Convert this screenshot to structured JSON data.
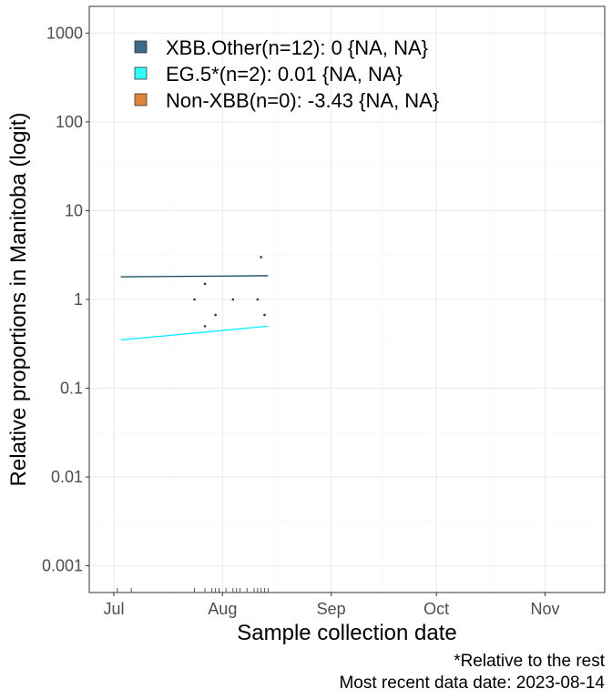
{
  "chart_data": {
    "type": "line",
    "title": "",
    "xlabel": "Sample collection date",
    "ylabel": "Relative proportions in Manitoba (logit)",
    "x_axis": {
      "type": "date",
      "range": [
        "2023-06-24",
        "2023-11-18"
      ],
      "ticks": [
        {
          "date": "2023-07-01",
          "label": "Jul"
        },
        {
          "date": "2023-08-01",
          "label": "Aug"
        },
        {
          "date": "2023-09-01",
          "label": "Sep"
        },
        {
          "date": "2023-10-01",
          "label": "Oct"
        },
        {
          "date": "2023-11-01",
          "label": "Nov"
        }
      ]
    },
    "y_axis": {
      "scale": "log10",
      "range": [
        0.0005,
        2000
      ],
      "ticks": [
        {
          "value": 0.001,
          "label": "0.001"
        },
        {
          "value": 0.01,
          "label": "0.01"
        },
        {
          "value": 0.1,
          "label": "0.1"
        },
        {
          "value": 1,
          "label": "1"
        },
        {
          "value": 10,
          "label": "10"
        },
        {
          "value": 100,
          "label": "100"
        },
        {
          "value": 1000,
          "label": "1000"
        }
      ]
    },
    "grid": true,
    "legend_position": "top-left",
    "series": [
      {
        "name": "XBB.Other(n=12): 0 {NA, NA}",
        "color": "#3a6b87",
        "line_color": "#0b4160",
        "x": [
          "2023-07-03",
          "2023-08-14"
        ],
        "y": [
          1.8,
          1.85
        ]
      },
      {
        "name": "EG.5*(n=2): 0.01 {NA, NA}",
        "color": "#33ffff",
        "line_color": "#00eeff",
        "x": [
          "2023-07-03",
          "2023-08-14"
        ],
        "y": [
          0.35,
          0.5
        ]
      },
      {
        "name": "Non-XBB(n=0): -3.43 {NA, NA}",
        "color": "#e0823a",
        "line_color": "#e0823a",
        "x": [],
        "y": []
      }
    ],
    "points": [
      {
        "x": "2023-07-24",
        "y": 1
      },
      {
        "x": "2023-07-27",
        "y": 1.5
      },
      {
        "x": "2023-07-27",
        "y": 0.5
      },
      {
        "x": "2023-07-30",
        "y": 0.67
      },
      {
        "x": "2023-08-04",
        "y": 1
      },
      {
        "x": "2023-08-11",
        "y": 1
      },
      {
        "x": "2023-08-12",
        "y": 3
      },
      {
        "x": "2023-08-13",
        "y": 0.67
      }
    ],
    "rug_dates": [
      "2023-07-02",
      "2023-07-06",
      "2023-07-24",
      "2023-07-27",
      "2023-07-29",
      "2023-07-30",
      "2023-07-31",
      "2023-08-02",
      "2023-08-04",
      "2023-08-05",
      "2023-08-06",
      "2023-08-08",
      "2023-08-10",
      "2023-08-11",
      "2023-08-12",
      "2023-08-13",
      "2023-08-14"
    ]
  },
  "caption": {
    "line1": "*Relative to the rest",
    "line2": "Most recent data date: 2023-08-14"
  }
}
